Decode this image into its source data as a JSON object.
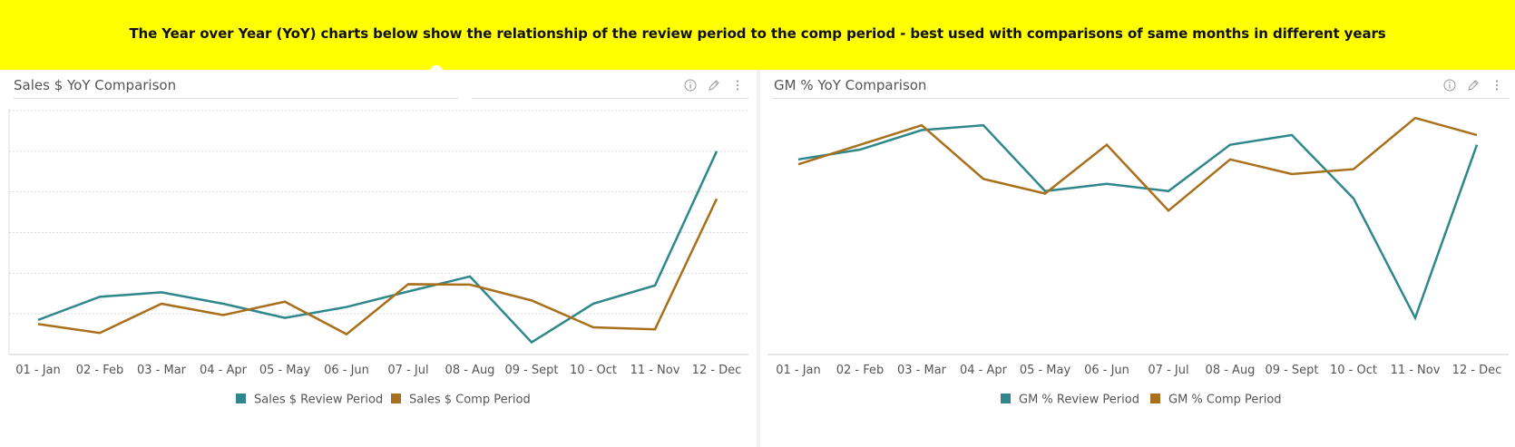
{
  "banner": {
    "text": "The Year over Year (YoY) charts below show the relationship of the review period to the comp period - best used with comparisons of same months in different years"
  },
  "colors": {
    "review": "#2f878c",
    "comp": "#a86f1c",
    "banner": "#ffff00"
  },
  "icons": [
    "info-icon",
    "pencil-icon",
    "kebab-menu-icon"
  ],
  "chart_data": [
    {
      "type": "line",
      "title": "Sales $ YoY Comparison",
      "xlabel": "",
      "ylabel": "",
      "categories": [
        "01 - Jan",
        "02 - Feb",
        "03 - Mar",
        "04 - Apr",
        "05 - May",
        "06 - Jun",
        "07 - Jul",
        "08 - Aug",
        "09 - Sept",
        "10 - Oct",
        "11 - Nov",
        "12 - Dec"
      ],
      "ylim": [
        0,
        6
      ],
      "grid": true,
      "legend": "bottom",
      "series": [
        {
          "name": "Sales $ Review Period",
          "values": [
            0.85,
            1.42,
            1.53,
            1.25,
            0.9,
            1.17,
            1.55,
            1.92,
            0.3,
            1.25,
            1.7,
            5.0
          ]
        },
        {
          "name": "Sales $ Comp Period",
          "values": [
            0.75,
            0.53,
            1.25,
            0.97,
            1.3,
            0.5,
            1.73,
            1.72,
            1.33,
            0.67,
            0.62,
            3.83
          ]
        }
      ]
    },
    {
      "type": "line",
      "title": "GM % YoY Comparison",
      "xlabel": "",
      "ylabel": "",
      "categories": [
        "01 - Jan",
        "02 - Feb",
        "03 - Mar",
        "04 - Apr",
        "05 - May",
        "06 - Jun",
        "07 - Jul",
        "08 - Aug",
        "09 - Sept",
        "10 - Oct",
        "11 - Nov",
        "12 - Dec"
      ],
      "ylim": [
        0,
        100
      ],
      "grid": false,
      "legend": "bottom",
      "series": [
        {
          "name": "GM % Review Period",
          "values": [
            80,
            84,
            92,
            94,
            67,
            70,
            67,
            86,
            90,
            64,
            15,
            86
          ]
        },
        {
          "name": "GM % Comp Period",
          "values": [
            78,
            86,
            94,
            72,
            66,
            86,
            59,
            80,
            74,
            76,
            97,
            90
          ]
        }
      ]
    }
  ]
}
